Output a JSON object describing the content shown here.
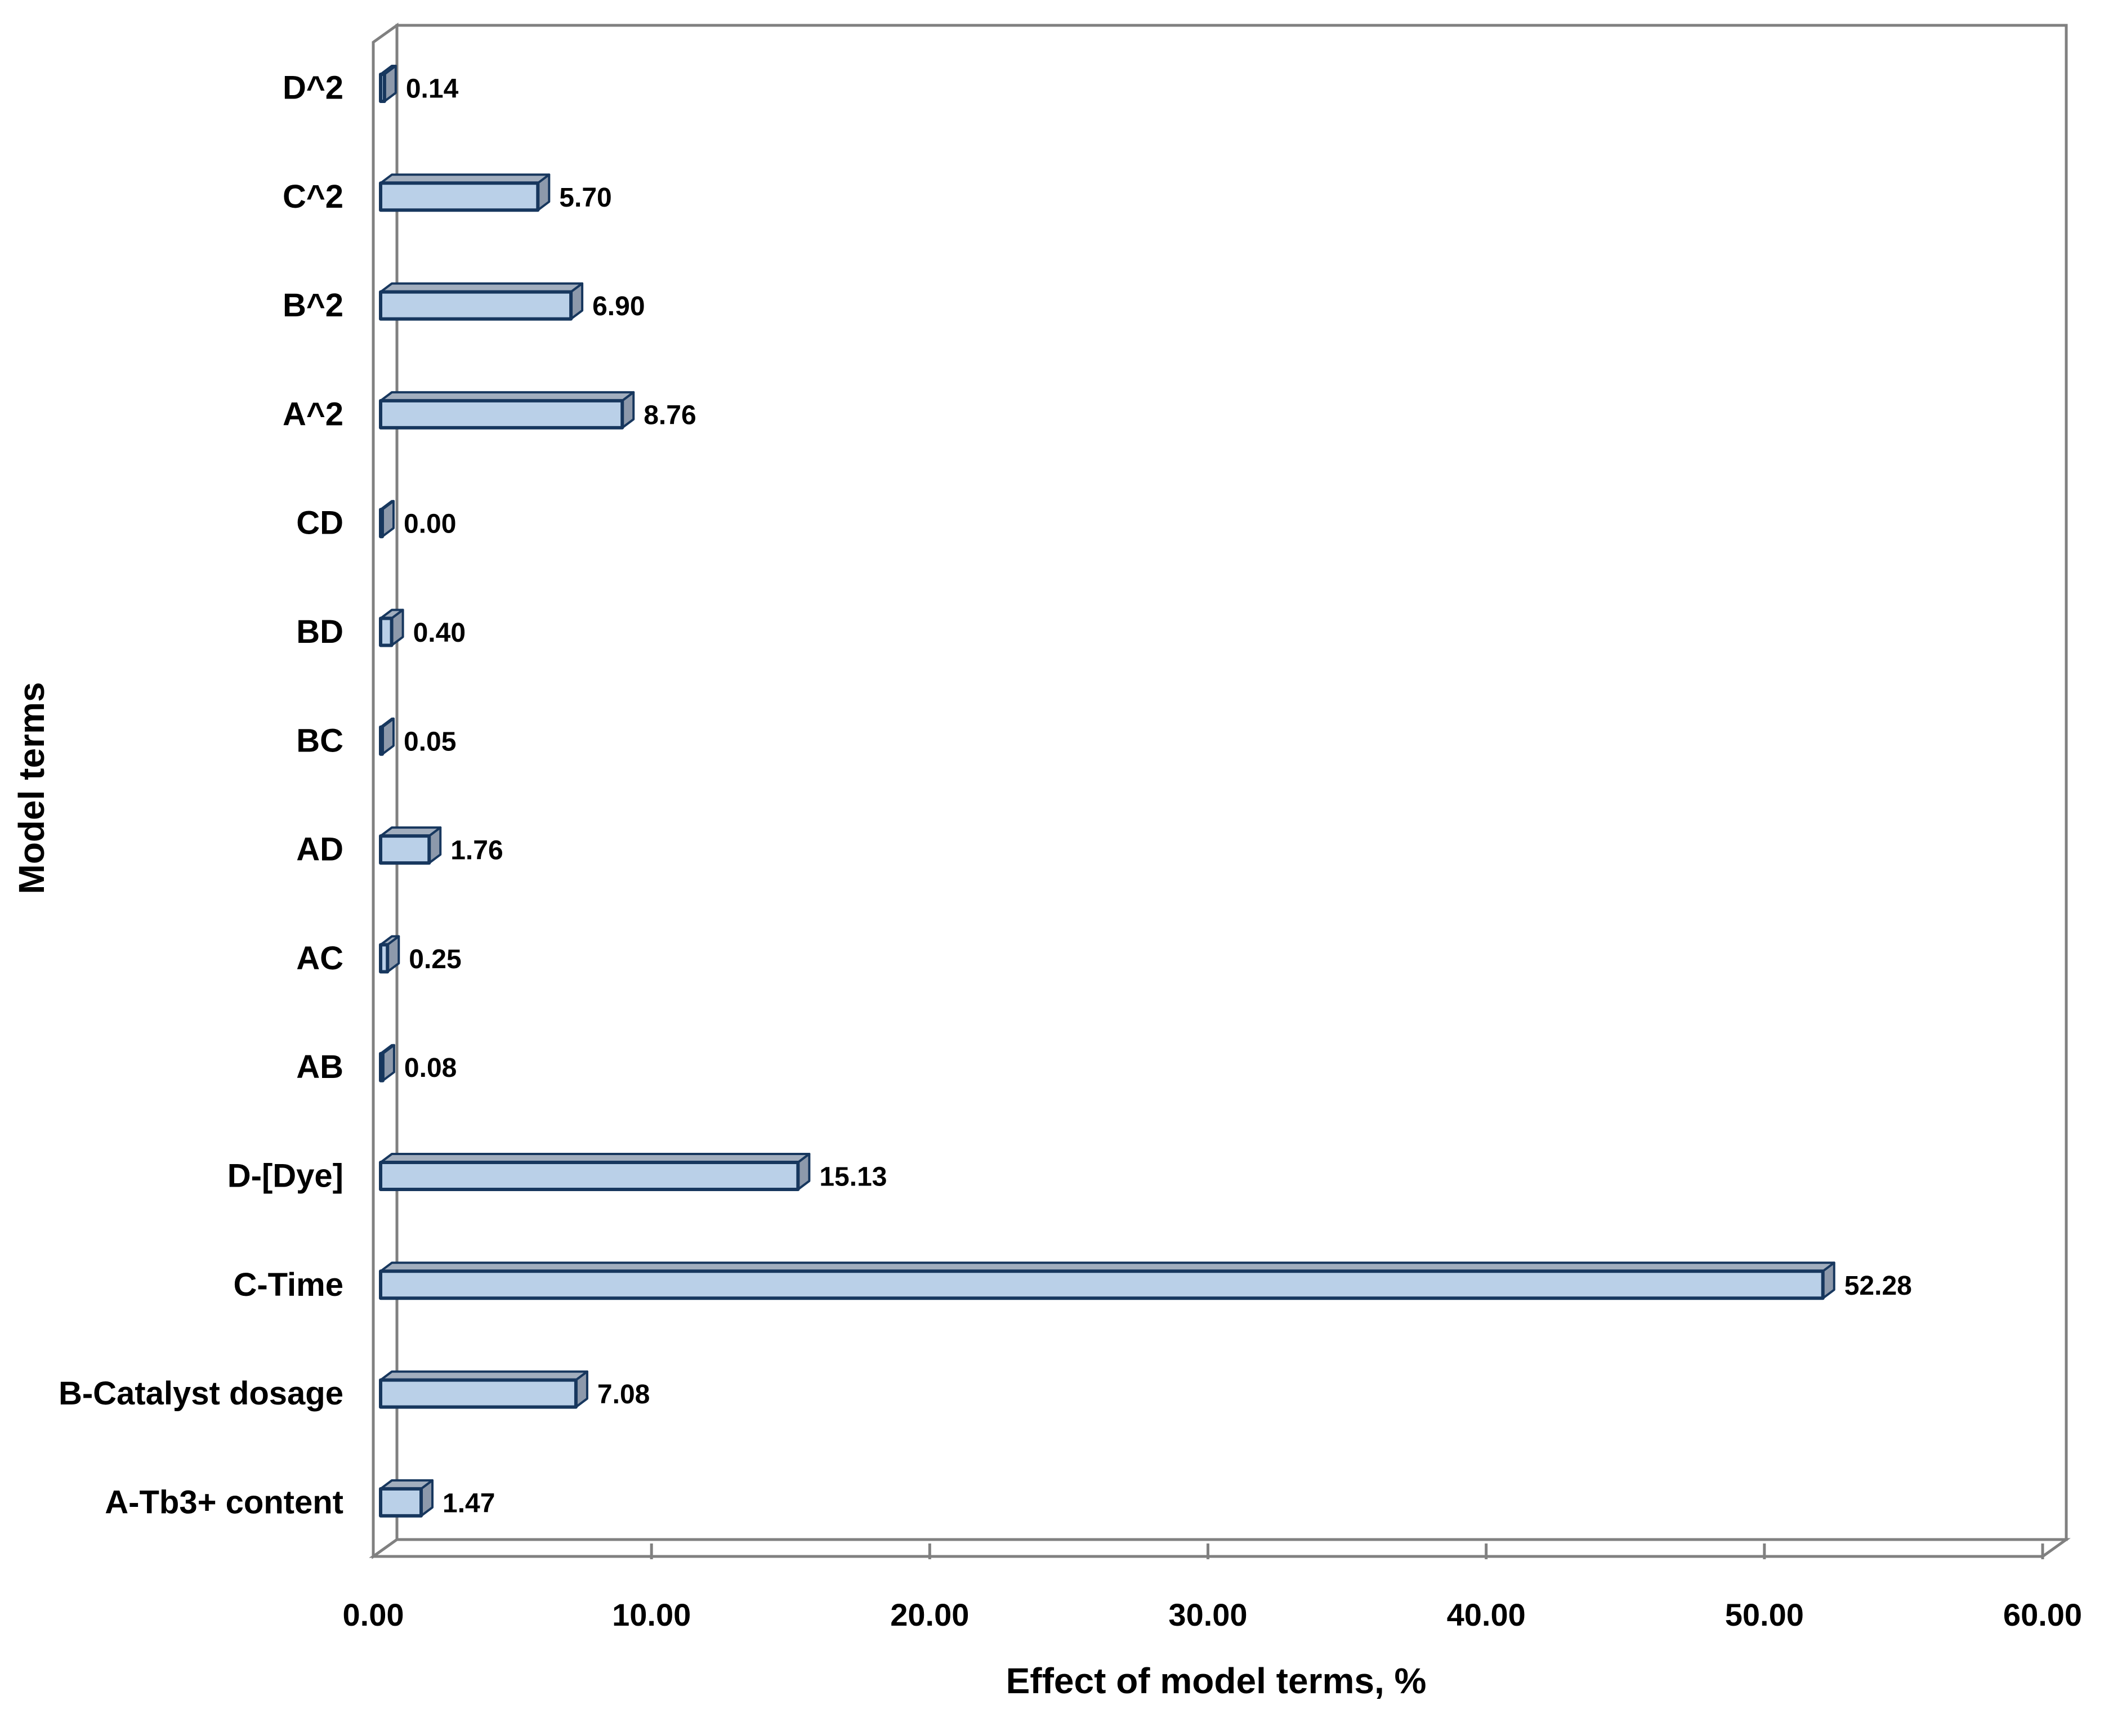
{
  "page": {
    "background": "#ffffff"
  },
  "chart_data": {
    "type": "bar",
    "orientation": "horizontal",
    "style": "3d-oblique",
    "title": "",
    "xlabel": "Effect of model terms, %",
    "ylabel": "Model terms",
    "categories": [
      "D^2",
      "C^2",
      "B^2",
      "A^2",
      "CD",
      "BD",
      "BC",
      "AD",
      "AC",
      "AB",
      "D-[Dye]",
      "C-Time",
      "B-Catalyst dosage",
      "A-Tb3+ content"
    ],
    "values": [
      0.14,
      5.7,
      6.9,
      8.76,
      0.0,
      0.4,
      0.05,
      1.76,
      0.25,
      0.08,
      15.13,
      52.28,
      7.08,
      1.47
    ],
    "value_labels": [
      "0.14",
      "5.70",
      "6.90",
      "8.76",
      "0.00",
      "0.40",
      "0.05",
      "1.76",
      "0.25",
      "0.08",
      "15.13",
      "52.28",
      "7.08",
      "1.47"
    ],
    "category_order": "top-to-bottom",
    "xlim": [
      0,
      60
    ],
    "x_tick_values": [
      0,
      10,
      20,
      30,
      40,
      50,
      60
    ],
    "x_tick_labels": [
      "0.00",
      "10.00",
      "20.00",
      "30.00",
      "40.00",
      "50.00",
      "60.00"
    ],
    "grid": false,
    "legend": false,
    "data_labels": true,
    "colors": {
      "bar_face": "#BAD0E8",
      "bar_top": "#A2AEBE",
      "bar_side": "#8D99AB",
      "bar_outline": "#17375E",
      "frame": "#808080",
      "wall_fill": "#FFFFFF",
      "text": "#000000"
    }
  }
}
